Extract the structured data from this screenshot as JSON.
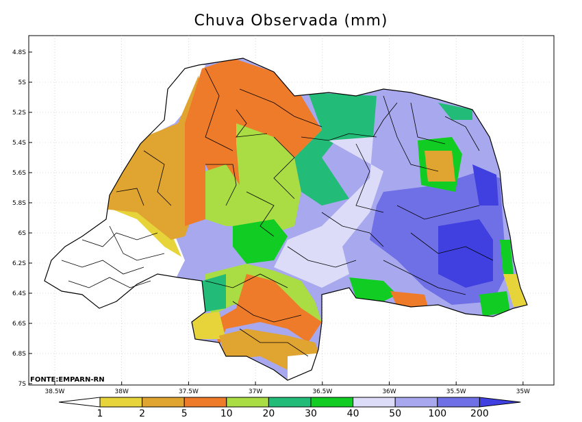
{
  "title": "Chuva Observada (mm)",
  "source": "FONTE:EMPARN-RN",
  "axes": {
    "lat_labels": [
      "4.8S",
      "5S",
      "5.2S",
      "5.4S",
      "5.6S",
      "5.8S",
      "6S",
      "6.2S",
      "6.4S",
      "6.6S",
      "6.8S",
      "7S"
    ],
    "lon_labels": [
      "38.5W",
      "38W",
      "37.5W",
      "37W",
      "36.5W",
      "36W",
      "35.5W",
      "35W"
    ]
  },
  "colorbar": {
    "labels": [
      "1",
      "2",
      "5",
      "10",
      "20",
      "30",
      "40",
      "50",
      "100",
      "200"
    ],
    "colors": [
      "#e6d43a",
      "#e0a430",
      "#ee7b2a",
      "#aadd44",
      "#22bb77",
      "#11cc22",
      "#dcdcf8",
      "#a8a8ee",
      "#7070e6",
      "#4040e0"
    ]
  },
  "colors": {
    "none": "#ffffff",
    "c1": "#e6d43a",
    "c2": "#e0a430",
    "c5": "#ee7b2a",
    "c10": "#aadd44",
    "c20": "#22bb77",
    "c30": "#11cc22",
    "c40": "#dcdcf8",
    "c50": "#a8a8ee",
    "c100": "#7070e6",
    "c200": "#4040e0"
  }
}
